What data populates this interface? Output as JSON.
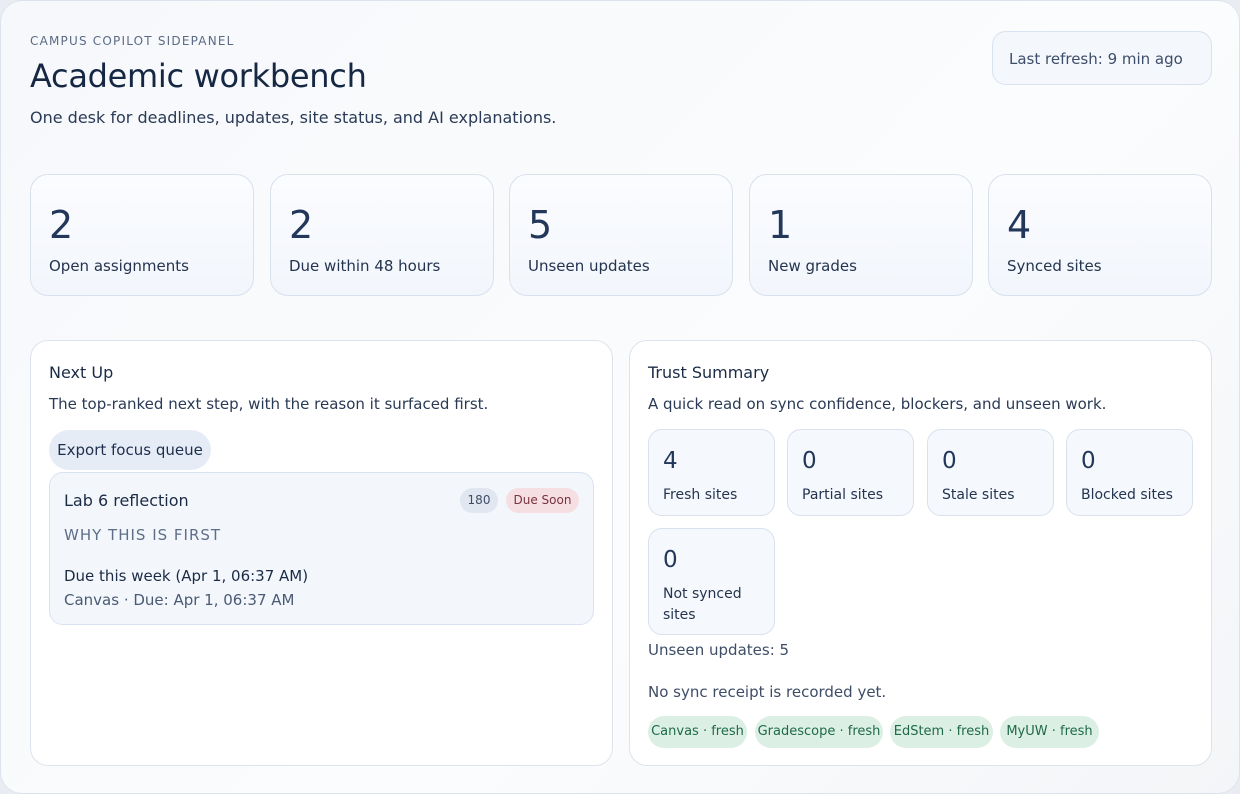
{
  "header": {
    "eyebrow": "CAMPUS COPILOT SIDEPANEL",
    "title": "Academic workbench",
    "subtitle": "One desk for deadlines, updates, site status, and AI explanations.",
    "refresh": "Last refresh: 9 min ago"
  },
  "stats": [
    {
      "value": "2",
      "label": "Open assignments"
    },
    {
      "value": "2",
      "label": "Due within 48 hours"
    },
    {
      "value": "5",
      "label": "Unseen updates"
    },
    {
      "value": "1",
      "label": "New grades"
    },
    {
      "value": "4",
      "label": "Synced sites"
    }
  ],
  "next_up": {
    "title": "Next Up",
    "description": "The top-ranked next step, with the reason it surfaced first.",
    "export_label": "Export focus queue",
    "task": {
      "name": "Lab 6 reflection",
      "score": "180",
      "status": "Due Soon",
      "why_label": "WHY THIS IS FIRST",
      "due": "Due this week (Apr 1, 06:37 AM)",
      "meta": "Canvas · Due: Apr 1, 06:37 AM"
    }
  },
  "trust": {
    "title": "Trust Summary",
    "description": "A quick read on sync confidence, blockers, and unseen work.",
    "counts": [
      {
        "value": "4",
        "label": "Fresh sites"
      },
      {
        "value": "0",
        "label": "Partial sites"
      },
      {
        "value": "0",
        "label": "Stale sites"
      },
      {
        "value": "0",
        "label": "Blocked sites"
      },
      {
        "value": "0",
        "label": "Not synced sites"
      }
    ],
    "unseen": "Unseen updates: 5",
    "receipt": "No sync receipt is recorded yet.",
    "sites": [
      "Canvas · fresh",
      "Gradescope · fresh",
      "EdStem · fresh",
      "MyUW · fresh"
    ]
  }
}
